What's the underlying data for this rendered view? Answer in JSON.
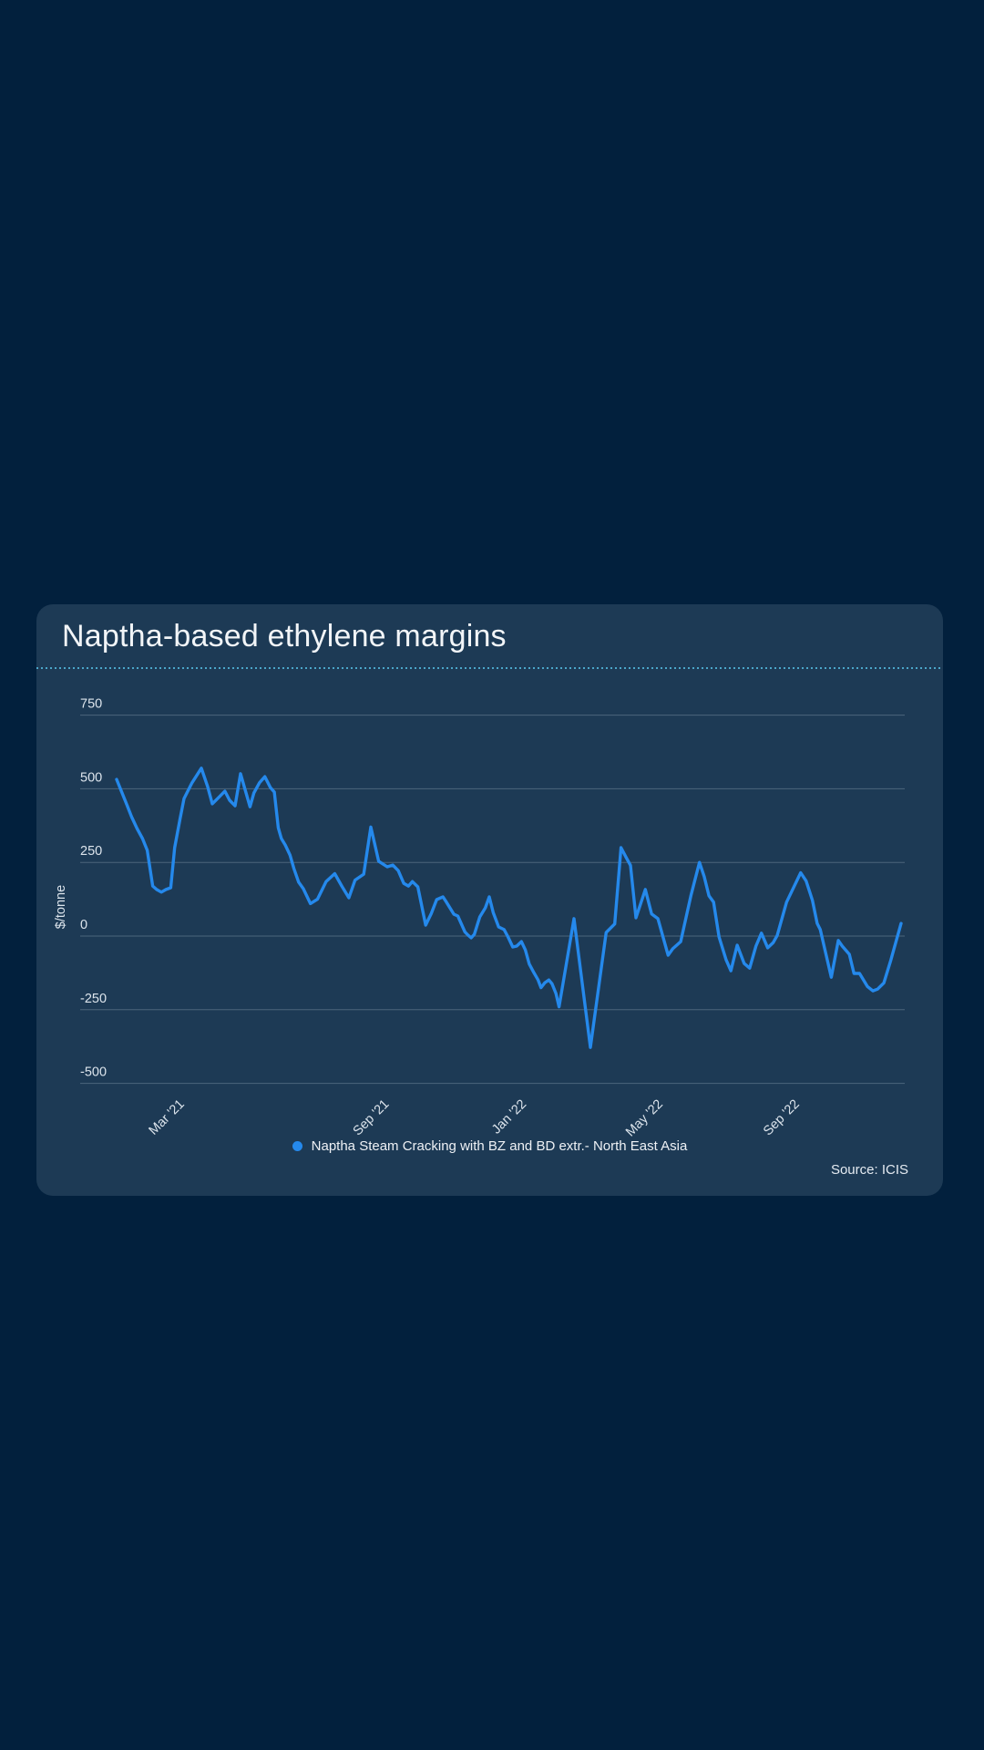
{
  "page": {
    "background": "#02203d"
  },
  "card": {
    "background": "#1d3a55",
    "title": "Naptha-based ethylene margins",
    "separator_color": "#4ba6c9",
    "source": "Source: ICIS"
  },
  "chart_data": {
    "type": "line",
    "title": "Naptha-based ethylene margins",
    "ylabel": "$/tonne",
    "ylim": [
      -500,
      750
    ],
    "y_ticks": [
      750,
      500,
      250,
      0,
      -250,
      -500
    ],
    "grid": "horizontal gridlines only, no axis lines",
    "grid_color": "rgba(200,214,228,0.28)",
    "tick_color": "#dce4ec",
    "legend_position": "bottom center",
    "x_range": [
      "Jan 2021",
      "Nov 2022"
    ],
    "x_ticks": [
      {
        "label": "Mar '21",
        "f": 0.087
      },
      {
        "label": "Sep '21",
        "f": 0.348
      },
      {
        "label": "Jan '22",
        "f": 0.523
      },
      {
        "label": "May '22",
        "f": 0.697
      },
      {
        "label": "Sep '22",
        "f": 0.871
      }
    ],
    "series": [
      {
        "name": "Naptha Steam Cracking with BZ and BD extr.- North East Asia",
        "color": "#2589ec",
        "unit": "$/tonne",
        "points": [
          [
            0.0,
            532
          ],
          [
            0.006,
            492
          ],
          [
            0.013,
            446
          ],
          [
            0.019,
            405
          ],
          [
            0.026,
            365
          ],
          [
            0.033,
            331
          ],
          [
            0.039,
            291
          ],
          [
            0.046,
            170
          ],
          [
            0.051,
            158
          ],
          [
            0.057,
            149
          ],
          [
            0.063,
            158
          ],
          [
            0.069,
            164
          ],
          [
            0.074,
            300
          ],
          [
            0.081,
            399
          ],
          [
            0.086,
            467
          ],
          [
            0.096,
            520
          ],
          [
            0.108,
            570
          ],
          [
            0.116,
            507
          ],
          [
            0.122,
            449
          ],
          [
            0.13,
            470
          ],
          [
            0.138,
            492
          ],
          [
            0.144,
            461
          ],
          [
            0.151,
            442
          ],
          [
            0.158,
            551
          ],
          [
            0.164,
            495
          ],
          [
            0.17,
            439
          ],
          [
            0.175,
            486
          ],
          [
            0.182,
            520
          ],
          [
            0.189,
            541
          ],
          [
            0.196,
            504
          ],
          [
            0.201,
            489
          ],
          [
            0.206,
            368
          ],
          [
            0.21,
            331
          ],
          [
            0.215,
            309
          ],
          [
            0.221,
            275
          ],
          [
            0.226,
            229
          ],
          [
            0.232,
            183
          ],
          [
            0.238,
            161
          ],
          [
            0.247,
            110
          ],
          [
            0.256,
            125
          ],
          [
            0.267,
            185
          ],
          [
            0.278,
            212
          ],
          [
            0.287,
            170
          ],
          [
            0.296,
            130
          ],
          [
            0.304,
            190
          ],
          [
            0.315,
            210
          ],
          [
            0.324,
            370
          ],
          [
            0.334,
            254
          ],
          [
            0.345,
            235
          ],
          [
            0.352,
            241
          ],
          [
            0.359,
            222
          ],
          [
            0.366,
            179
          ],
          [
            0.372,
            170
          ],
          [
            0.377,
            185
          ],
          [
            0.384,
            167
          ],
          [
            0.394,
            37
          ],
          [
            0.401,
            76
          ],
          [
            0.408,
            124
          ],
          [
            0.416,
            133
          ],
          [
            0.42,
            117
          ],
          [
            0.43,
            74
          ],
          [
            0.435,
            68
          ],
          [
            0.444,
            14
          ],
          [
            0.448,
            3
          ],
          [
            0.452,
            -6
          ],
          [
            0.456,
            6
          ],
          [
            0.463,
            65
          ],
          [
            0.47,
            96
          ],
          [
            0.475,
            133
          ],
          [
            0.48,
            80
          ],
          [
            0.487,
            31
          ],
          [
            0.494,
            22
          ],
          [
            0.499,
            -3
          ],
          [
            0.505,
            -37
          ],
          [
            0.51,
            -34
          ],
          [
            0.516,
            -19
          ],
          [
            0.521,
            -47
          ],
          [
            0.526,
            -95
          ],
          [
            0.532,
            -125
          ],
          [
            0.537,
            -148
          ],
          [
            0.541,
            -175
          ],
          [
            0.546,
            -158
          ],
          [
            0.551,
            -149
          ],
          [
            0.555,
            -162
          ],
          [
            0.56,
            -195
          ],
          [
            0.564,
            -240
          ],
          [
            0.583,
            59
          ],
          [
            0.604,
            -378
          ],
          [
            0.624,
            12
          ],
          [
            0.635,
            41
          ],
          [
            0.643,
            300
          ],
          [
            0.65,
            265
          ],
          [
            0.655,
            240
          ],
          [
            0.662,
            62
          ],
          [
            0.674,
            158
          ],
          [
            0.682,
            75
          ],
          [
            0.69,
            59
          ],
          [
            0.703,
            -65
          ],
          [
            0.709,
            -43
          ],
          [
            0.719,
            -19
          ],
          [
            0.732,
            137
          ],
          [
            0.743,
            250
          ],
          [
            0.749,
            202
          ],
          [
            0.755,
            137
          ],
          [
            0.761,
            115
          ],
          [
            0.768,
            -3
          ],
          [
            0.777,
            -81
          ],
          [
            0.783,
            -118
          ],
          [
            0.791,
            -31
          ],
          [
            0.8,
            -93
          ],
          [
            0.807,
            -109
          ],
          [
            0.815,
            -34
          ],
          [
            0.822,
            10
          ],
          [
            0.83,
            -40
          ],
          [
            0.837,
            -22
          ],
          [
            0.842,
            2
          ],
          [
            0.854,
            115
          ],
          [
            0.872,
            215
          ],
          [
            0.879,
            187
          ],
          [
            0.887,
            121
          ],
          [
            0.893,
            43
          ],
          [
            0.897,
            22
          ],
          [
            0.911,
            -140
          ],
          [
            0.92,
            -15
          ],
          [
            0.925,
            -34
          ],
          [
            0.934,
            -62
          ],
          [
            0.94,
            -127
          ],
          [
            0.947,
            -127
          ],
          [
            0.957,
            -171
          ],
          [
            0.964,
            -186
          ],
          [
            0.97,
            -180
          ],
          [
            0.978,
            -159
          ],
          [
            0.987,
            -81
          ],
          [
            1.0,
            43
          ]
        ]
      }
    ]
  }
}
